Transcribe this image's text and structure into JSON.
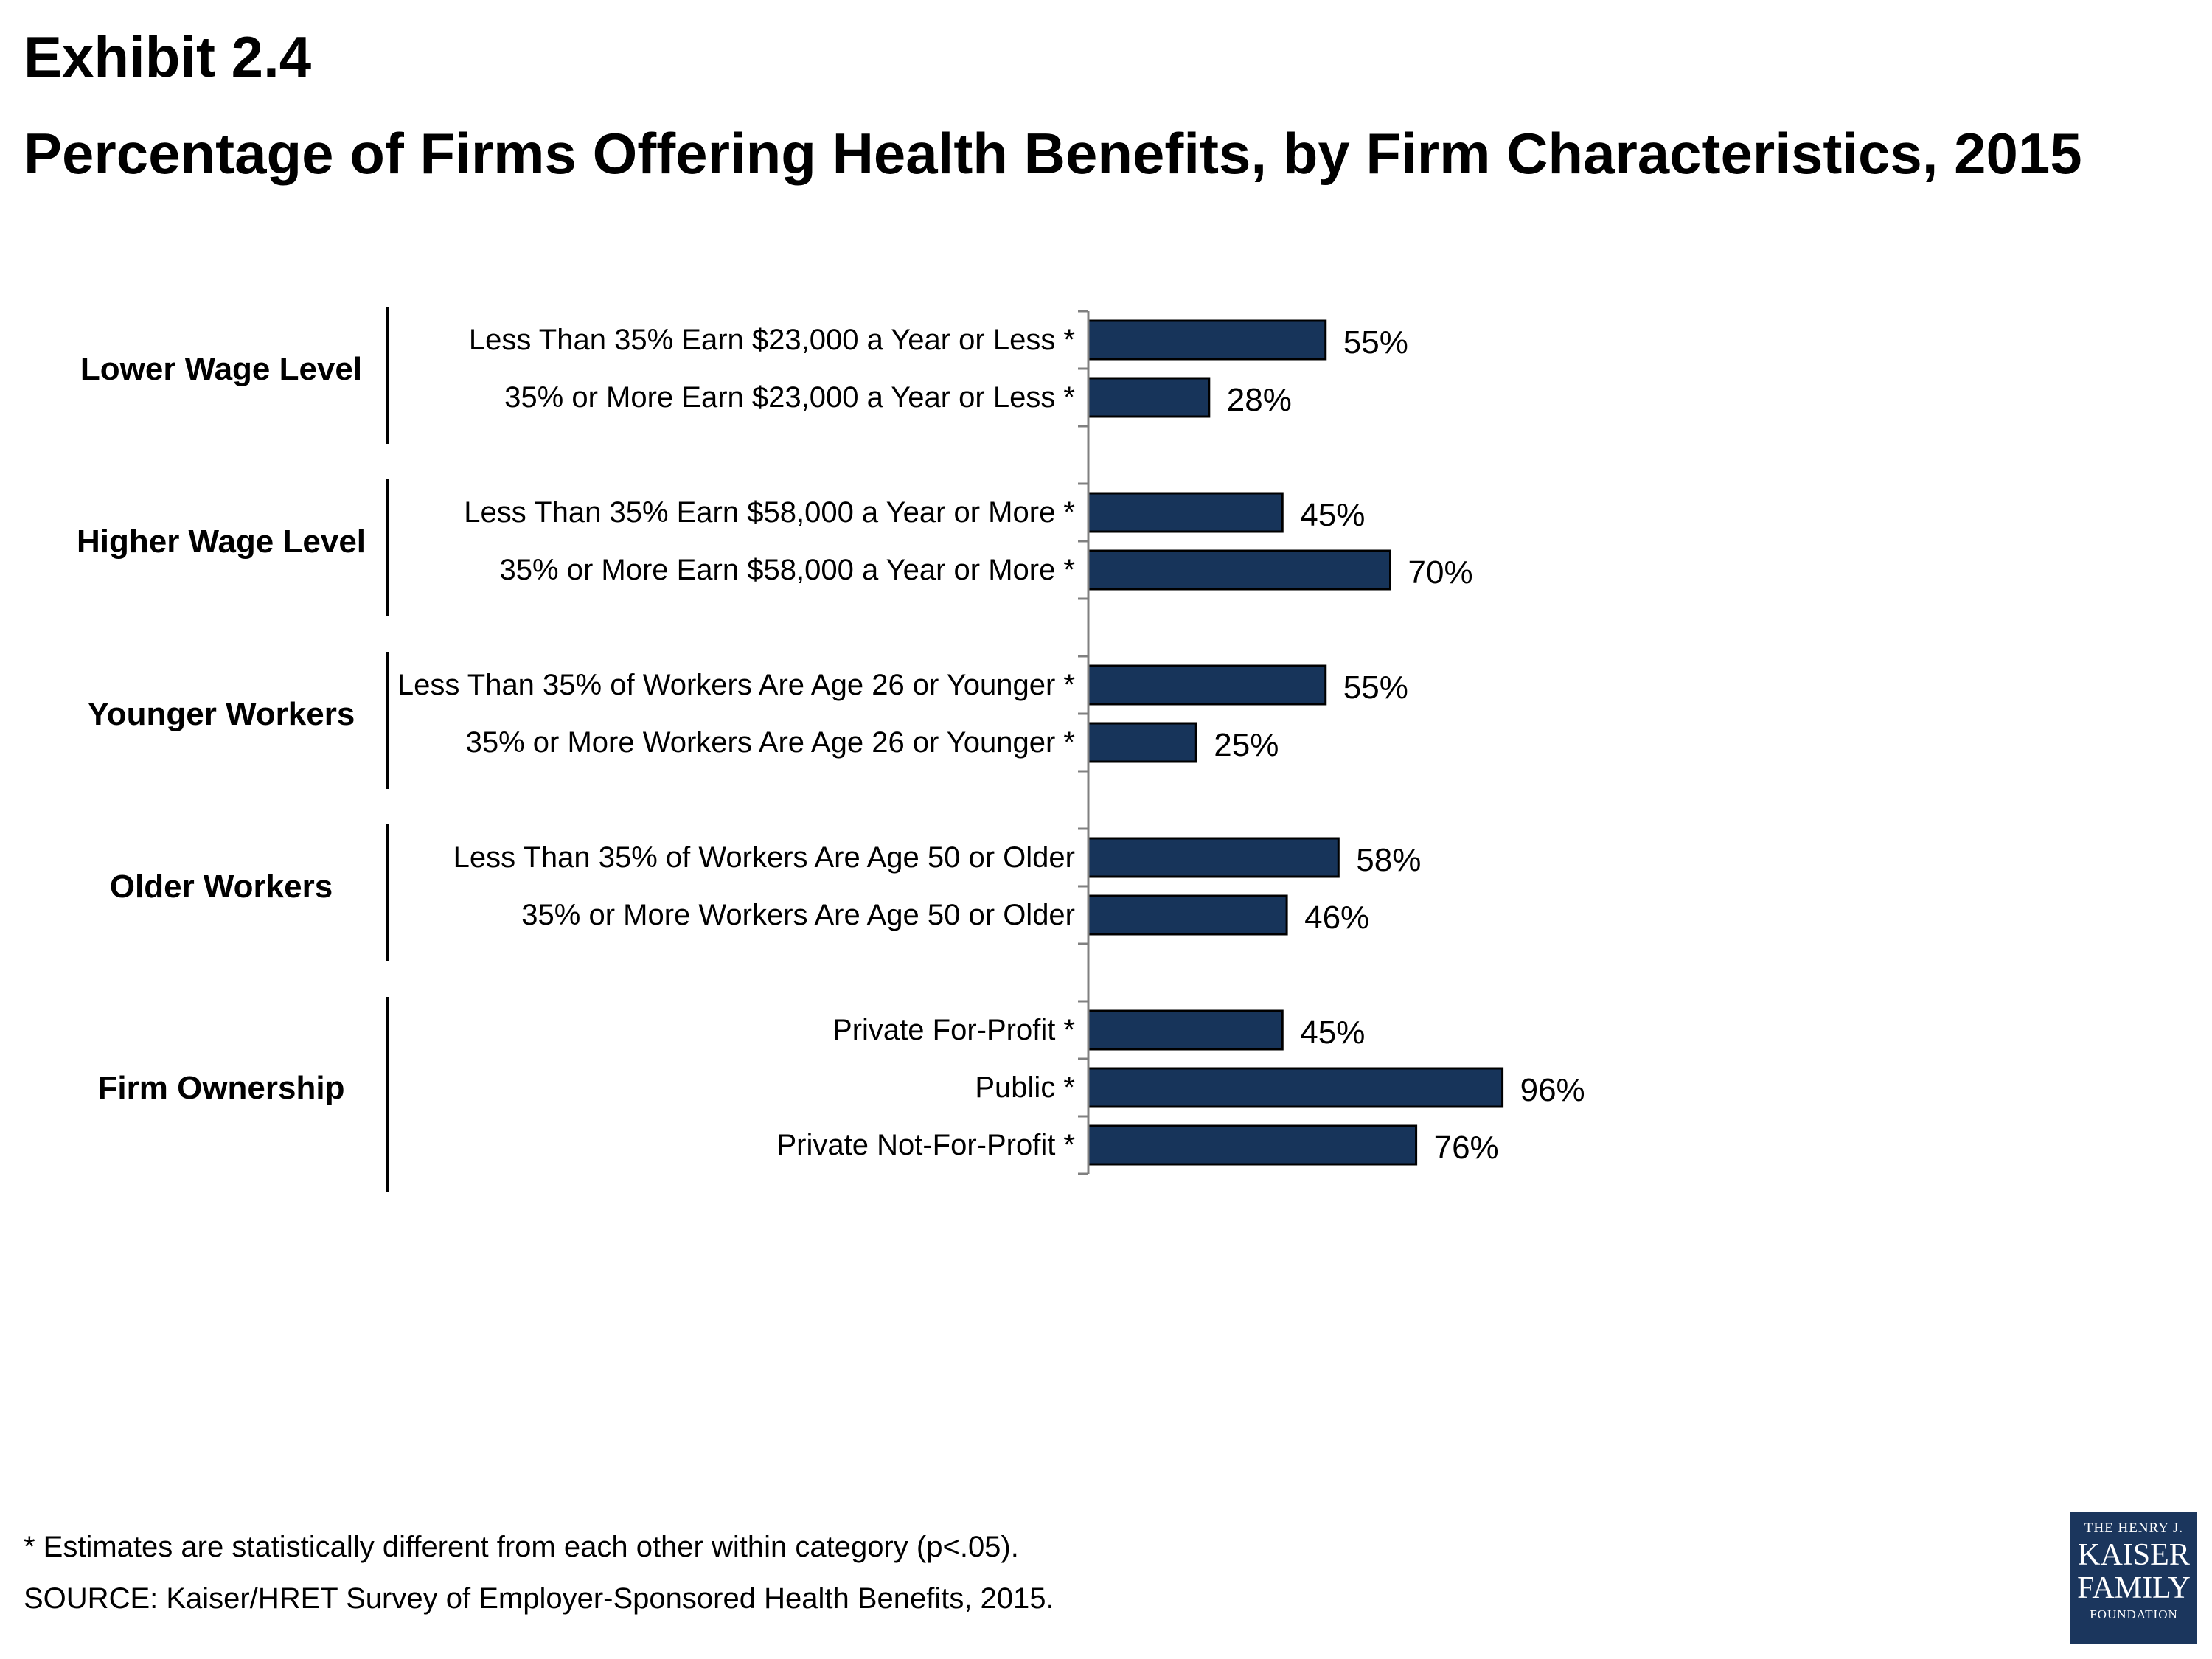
{
  "header": {
    "exhibit": "Exhibit 2.4",
    "title": "Percentage of Firms Offering Health Benefits, by Firm Characteristics, 2015"
  },
  "footer": {
    "footnote": "* Estimates are statistically different from each other within category (p<.05).",
    "source": "SOURCE: Kaiser/HRET Survey of Employer-Sponsored Health Benefits, 2015."
  },
  "logo": {
    "line1": "THE HENRY J.",
    "line2": "KAISER",
    "line3": "FAMILY",
    "line4": "FOUNDATION"
  },
  "colors": {
    "bar": "#17345a",
    "bar_outline": "#000000"
  },
  "chart_data": {
    "type": "bar",
    "orientation": "horizontal",
    "value_suffix": "%",
    "xlim": [
      0,
      100
    ],
    "grid": false,
    "groups": [
      {
        "name": "Lower Wage Level",
        "bars": [
          {
            "label": "Less Than 35% Earn $23,000 a Year or Less *",
            "value": 55
          },
          {
            "label": "35% or More Earn $23,000 a Year or Less *",
            "value": 28
          }
        ]
      },
      {
        "name": "Higher Wage Level",
        "bars": [
          {
            "label": "Less Than 35% Earn $58,000 a Year or More *",
            "value": 45
          },
          {
            "label": "35% or More Earn $58,000 a Year or More *",
            "value": 70
          }
        ]
      },
      {
        "name": "Younger Workers",
        "bars": [
          {
            "label": "Less Than 35% of Workers Are Age 26 or Younger *",
            "value": 55
          },
          {
            "label": "35% or More Workers Are Age 26 or Younger *",
            "value": 25
          }
        ]
      },
      {
        "name": "Older Workers",
        "bars": [
          {
            "label": "Less Than 35% of Workers Are Age 50 or Older",
            "value": 58
          },
          {
            "label": "35% or More Workers Are Age 50 or Older",
            "value": 46
          }
        ]
      },
      {
        "name": "Firm Ownership",
        "bars": [
          {
            "label": "Private For-Profit *",
            "value": 45
          },
          {
            "label": "Public *",
            "value": 96
          },
          {
            "label": "Private Not-For-Profit *",
            "value": 76
          }
        ]
      }
    ]
  }
}
